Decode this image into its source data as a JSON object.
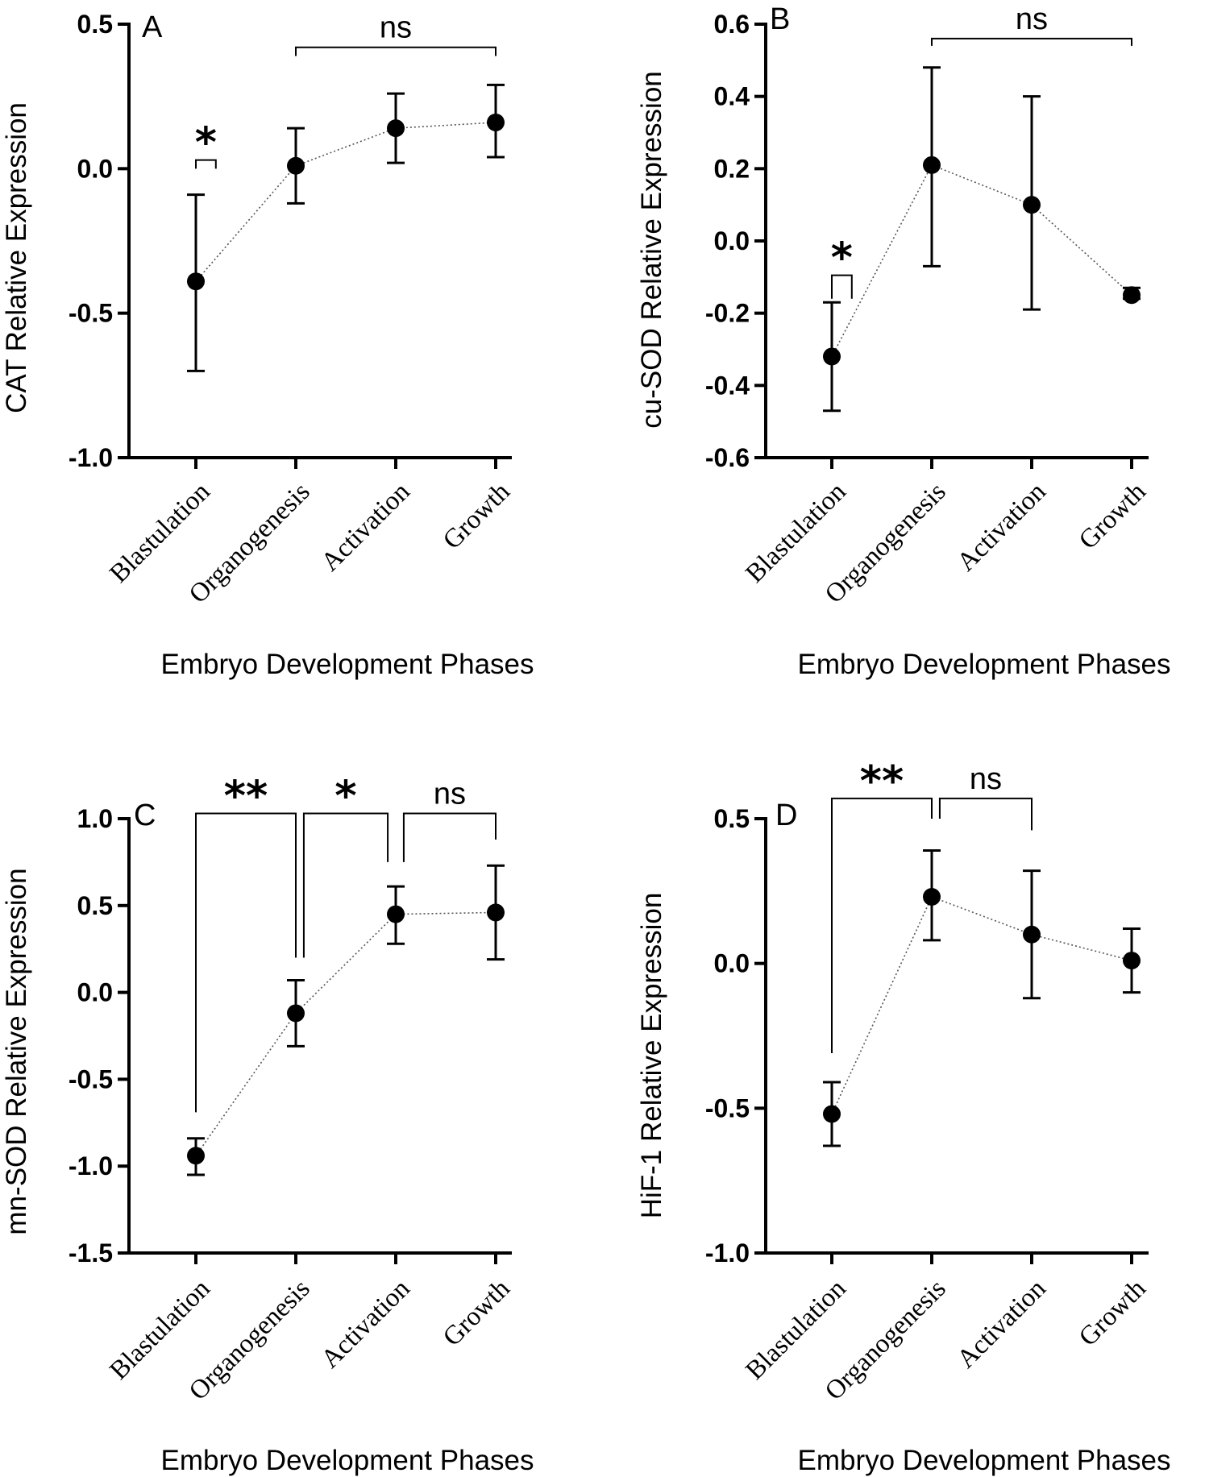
{
  "figure": {
    "xlabel": "Embryo Development Phases",
    "categories": [
      "Blastulation",
      "Organogenesis",
      "Activation",
      "Growth"
    ]
  },
  "chart_data": [
    {
      "panel": "A",
      "type": "scatter",
      "title": "",
      "xlabel": "Embryo Development Phases",
      "ylabel": "CAT Relative Expression",
      "categories": [
        "Blastulation",
        "Organogenesis",
        "Activation",
        "Growth"
      ],
      "series": [
        {
          "name": "CAT",
          "values": [
            -0.39,
            0.01,
            0.14,
            0.16
          ],
          "err_low": [
            -0.7,
            -0.12,
            0.02,
            0.04
          ],
          "err_high": [
            -0.09,
            0.14,
            0.26,
            0.29
          ]
        }
      ],
      "ylim": [
        -1.0,
        0.5
      ],
      "yticks": [
        -1.0,
        -0.5,
        0.0,
        0.5
      ],
      "ytick_labels": [
        "-1.0",
        "-0.5",
        "0.0",
        "0.5"
      ],
      "annotations": [
        {
          "label": "*",
          "from": 0,
          "to": 0.2,
          "y": 0.03,
          "drop": [
            0.0,
            0.0
          ],
          "kind": "star"
        },
        {
          "label": "ns",
          "from": 1,
          "to": 3,
          "y": 0.42,
          "drop": [
            0.39,
            0.39
          ],
          "kind": "text"
        }
      ]
    },
    {
      "panel": "B",
      "type": "scatter",
      "title": "",
      "xlabel": "Embryo Development Phases",
      "ylabel": "cu-SOD Relative Expression",
      "categories": [
        "Blastulation",
        "Organogenesis",
        "Activation",
        "Growth"
      ],
      "series": [
        {
          "name": "cu-SOD",
          "values": [
            -0.32,
            0.21,
            0.1,
            -0.15
          ],
          "err_low": [
            -0.47,
            -0.07,
            -0.19,
            -0.16
          ],
          "err_high": [
            -0.17,
            0.48,
            0.4,
            -0.13
          ]
        }
      ],
      "ylim": [
        -0.6,
        0.6
      ],
      "yticks": [
        -0.6,
        -0.4,
        -0.2,
        0.0,
        0.2,
        0.4,
        0.6
      ],
      "ytick_labels": [
        "-0.6",
        "-0.4",
        "-0.2",
        "0.0",
        "0.2",
        "0.4",
        "0.6"
      ],
      "annotations": [
        {
          "label": "*",
          "from": 0,
          "to": 0.2,
          "y": -0.095,
          "drop": [
            -0.16,
            -0.16
          ],
          "kind": "star"
        },
        {
          "label": "ns",
          "from": 1,
          "to": 3,
          "y": 0.56,
          "drop": [
            0.54,
            0.54
          ],
          "kind": "text"
        }
      ]
    },
    {
      "panel": "C",
      "type": "scatter",
      "title": "",
      "xlabel": "Embryo Development Phases",
      "ylabel": "mn-SOD Relative Expression",
      "categories": [
        "Blastulation",
        "Organogenesis",
        "Activation",
        "Growth"
      ],
      "series": [
        {
          "name": "mn-SOD",
          "values": [
            -0.94,
            -0.12,
            0.45,
            0.46
          ],
          "err_low": [
            -1.05,
            -0.31,
            0.28,
            0.19
          ],
          "err_high": [
            -0.84,
            0.07,
            0.61,
            0.73
          ]
        }
      ],
      "ylim": [
        -1.5,
        1.0
      ],
      "yticks": [
        -1.5,
        -1.0,
        -0.5,
        0.0,
        0.5,
        1.0
      ],
      "ytick_labels": [
        "-1.5",
        "-1.0",
        "-0.5",
        "0.0",
        "0.5",
        "1.0"
      ],
      "annotations": [
        {
          "label": "**",
          "from": 0,
          "to": 1,
          "y": 1.03,
          "drop": [
            -0.69,
            0.2
          ],
          "kind": "star"
        },
        {
          "label": "*",
          "from": 1.08,
          "to": 1.92,
          "y": 1.03,
          "drop": [
            0.2,
            0.75
          ],
          "kind": "star"
        },
        {
          "label": "ns",
          "from": 2.08,
          "to": 3,
          "y": 1.03,
          "drop": [
            0.75,
            0.88
          ],
          "kind": "text"
        }
      ]
    },
    {
      "panel": "D",
      "type": "scatter",
      "title": "",
      "xlabel": "Embryo Development Phases",
      "ylabel": "HiF-1 Relative Expression",
      "categories": [
        "Blastulation",
        "Organogenesis",
        "Activation",
        "Growth"
      ],
      "series": [
        {
          "name": "HiF-1",
          "values": [
            -0.52,
            0.23,
            0.1,
            0.01
          ],
          "err_low": [
            -0.63,
            0.08,
            -0.12,
            -0.1
          ],
          "err_high": [
            -0.41,
            0.39,
            0.32,
            0.12
          ]
        }
      ],
      "ylim": [
        -1.0,
        0.5
      ],
      "yticks": [
        -1.0,
        -0.5,
        0.0,
        0.5
      ],
      "ytick_labels": [
        "-1.0",
        "-0.5",
        "0.0",
        "0.5"
      ],
      "annotations": [
        {
          "label": "**",
          "from": 0,
          "to": 1,
          "y": 0.57,
          "drop": [
            -0.31,
            0.5
          ],
          "kind": "star"
        },
        {
          "label": "ns",
          "from": 1.08,
          "to": 2,
          "y": 0.57,
          "drop": [
            0.5,
            0.46
          ],
          "kind": "text"
        }
      ]
    }
  ]
}
